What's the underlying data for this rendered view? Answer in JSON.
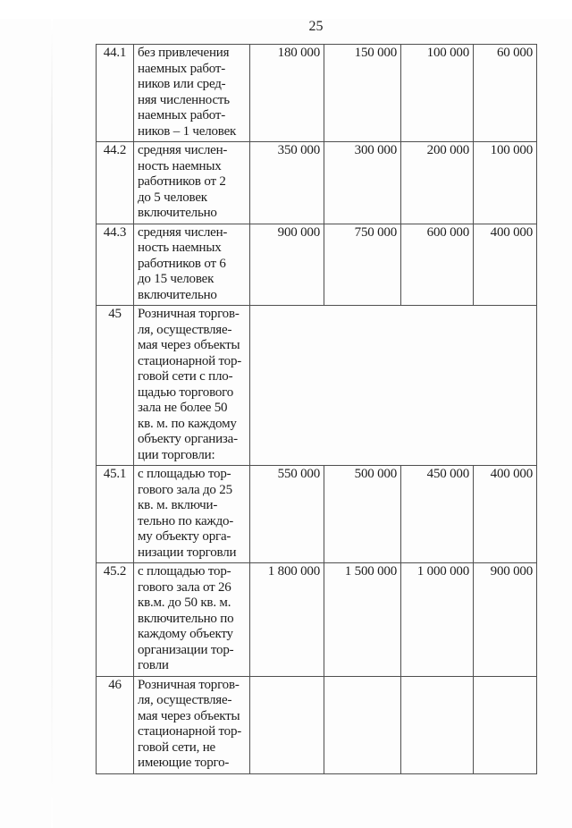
{
  "page": {
    "number": "25"
  },
  "table": {
    "rows": [
      {
        "id": "44.1",
        "description": "без привлечения\nнаемных работ-\nников или сред-\nняя численность\nнаемных работ-\nников – 1 человек",
        "merged": false,
        "values": [
          "180 000",
          "150 000",
          "100 000",
          "60 000"
        ]
      },
      {
        "id": "44.2",
        "description": "средняя числен-\nность наемных\nработников от 2\nдо 5 человек\nвключительно",
        "merged": false,
        "values": [
          "350 000",
          "300 000",
          "200 000",
          "100 000"
        ]
      },
      {
        "id": "44.3",
        "description": "средняя числен-\nность наемных\nработников от 6\nдо 15 человек\nвключительно",
        "merged": false,
        "values": [
          "900 000",
          "750 000",
          "600 000",
          "400 000"
        ]
      },
      {
        "id": "45",
        "description": "Розничная торгов-\nля, осуществляе-\nмая через объекты\nстационарной тор-\nговой сети с пло-\nщадью торгового\nзала не более 50\nкв. м. по каждому\nобъекту организа-\nции торговли:",
        "merged": true,
        "values": []
      },
      {
        "id": "45.1",
        "description": "с площадью тор-\nгового зала до 25\nкв. м. включи-\nтельно по каждо-\nму объекту орга-\nнизации торговли",
        "merged": false,
        "values": [
          "550 000",
          "500 000",
          "450 000",
          "400 000"
        ]
      },
      {
        "id": "45.2",
        "description": "с площадью тор-\nгового зала от 26\nкв.м. до 50 кв. м.\nвключительно по\nкаждому объекту\nорганизации тор-\nговли",
        "merged": false,
        "values": [
          "1 800 000",
          "1 500 000",
          "1 000 000",
          "900 000"
        ]
      },
      {
        "id": "46",
        "description": "Розничная торгов-\nля, осуществляе-\nмая через объекты\nстационарной тор-\nговой сети, не\nимеющие торго-",
        "merged": false,
        "values": [
          "",
          "",
          "",
          ""
        ]
      }
    ]
  }
}
